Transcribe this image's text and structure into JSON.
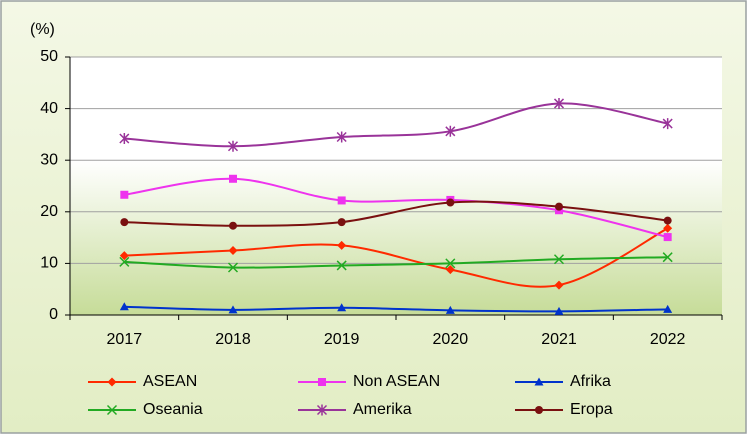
{
  "chart_data": {
    "type": "line",
    "y_label": "(%)",
    "categories": [
      "2017",
      "2018",
      "2019",
      "2020",
      "2021",
      "2022"
    ],
    "ylim": [
      0,
      50
    ],
    "yticks": [
      0,
      10,
      20,
      30,
      40,
      50
    ],
    "grid": true,
    "smooth": true,
    "legend": "bottom",
    "series": [
      {
        "name": "ASEAN",
        "color": "#ff2a00",
        "marker": "diamond",
        "values": [
          11.5,
          12.5,
          13.5,
          8.8,
          5.8,
          16.8
        ]
      },
      {
        "name": "Non ASEAN",
        "color": "#ee33ee",
        "marker": "square",
        "values": [
          23.3,
          26.4,
          22.2,
          22.3,
          20.3,
          15.1
        ]
      },
      {
        "name": "Afrika",
        "color": "#0033cc",
        "marker": "triangle",
        "values": [
          1.6,
          1.0,
          1.4,
          0.9,
          0.7,
          1.1
        ]
      },
      {
        "name": "Oseania",
        "color": "#22aa22",
        "marker": "x",
        "values": [
          10.3,
          9.2,
          9.6,
          10.0,
          10.8,
          11.2
        ]
      },
      {
        "name": "Amerika",
        "color": "#993399",
        "marker": "asterisk",
        "values": [
          34.2,
          32.7,
          34.5,
          35.6,
          41.0,
          37.1
        ]
      },
      {
        "name": "Eropa",
        "color": "#7a1010",
        "marker": "circle",
        "values": [
          18.0,
          17.3,
          18.0,
          21.8,
          21.0,
          18.3
        ]
      }
    ]
  }
}
